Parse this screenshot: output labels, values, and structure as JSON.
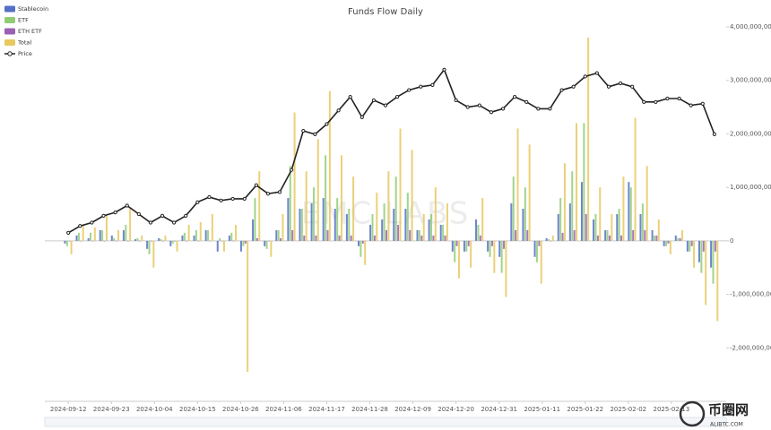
{
  "chart_data": {
    "type": "bar-line",
    "title": "Funds Flow Daily",
    "watermark": "EMC LABS",
    "x": [
      "2024-09-12",
      "2024-09-15",
      "2024-09-18",
      "2024-09-21",
      "2024-09-24",
      "2024-09-27",
      "2024-09-30",
      "2024-10-03",
      "2024-10-06",
      "2024-10-09",
      "2024-10-12",
      "2024-10-15",
      "2024-10-18",
      "2024-10-21",
      "2024-10-24",
      "2024-10-27",
      "2024-10-30",
      "2024-11-02",
      "2024-11-05",
      "2024-11-08",
      "2024-11-11",
      "2024-11-14",
      "2024-11-17",
      "2024-11-20",
      "2024-11-23",
      "2024-11-26",
      "2024-11-29",
      "2024-12-02",
      "2024-12-05",
      "2024-12-08",
      "2024-12-11",
      "2024-12-14",
      "2024-12-17",
      "2024-12-20",
      "2024-12-23",
      "2024-12-26",
      "2024-12-29",
      "2025-01-01",
      "2025-01-04",
      "2025-01-07",
      "2025-01-10",
      "2025-01-13",
      "2025-01-16",
      "2025-01-19",
      "2025-01-22",
      "2025-01-25",
      "2025-01-28",
      "2025-01-31",
      "2025-02-03",
      "2025-02-06",
      "2025-02-09",
      "2025-02-12",
      "2025-02-15",
      "2025-02-18",
      "2025-02-21",
      "2025-02-24"
    ],
    "xlim": [
      "2024-09-06",
      "2025-02-27"
    ],
    "xticks": [
      "2024-09-12",
      "2024-09-23",
      "2024-10-04",
      "2024-10-15",
      "2024-10-26",
      "2024-11-06",
      "2024-11-17",
      "2024-11-28",
      "2024-12-09",
      "2024-12-20",
      "2024-12-31",
      "2025-01-11",
      "2025-01-22",
      "2025-02-02",
      "2025-02-13"
    ],
    "ylim": [
      -3000000000,
      4000000000
    ],
    "yticks": [
      {
        "value": 4000000000,
        "label": "4,000,000,000"
      },
      {
        "value": 3000000000,
        "label": "3,000,000,000"
      },
      {
        "value": 2000000000,
        "label": "2,000,000,000"
      },
      {
        "value": 1000000000,
        "label": "1,000,000,000"
      },
      0,
      {
        "value": -1000000000,
        "label": "-1,000,000,000"
      },
      {
        "value": -2000000000,
        "label": "-2,000,000,000"
      }
    ],
    "y2lim": [
      8400,
      118600
    ],
    "grid": false,
    "legend": "top-left",
    "series": [
      {
        "name": "Stablecoin",
        "color": "#5470c6",
        "values": [
          -50000000.0,
          100000000.0,
          50000000.0,
          200000000.0,
          100000000.0,
          200000000.0,
          30000000.0,
          -150000000.0,
          50000000.0,
          -100000000.0,
          100000000.0,
          100000000.0,
          200000000.0,
          -200000000.0,
          100000000.0,
          -200000000.0,
          400000000.0,
          -100000000.0,
          200000000.0,
          800000000.0,
          600000000.0,
          700000000.0,
          800000000.0,
          600000000.0,
          500000000.0,
          -100000000.0,
          300000000.0,
          400000000.0,
          600000000.0,
          600000000.0,
          200000000.0,
          400000000.0,
          300000000.0,
          -200000000.0,
          -200000000.0,
          400000000.0,
          -200000000.0,
          -300000000.0,
          700000000.0,
          600000000.0,
          -300000000.0,
          50000000.0,
          500000000.0,
          700000000.0,
          1100000000.0,
          400000000.0,
          200000000.0,
          500000000.0,
          1100000000.0,
          500000000.0,
          200000000.0,
          -100000000.0,
          100000000.0,
          -200000000.0,
          -400000000.0,
          -500000000.0
        ]
      },
      {
        "name": "ETF",
        "color": "#91cc75",
        "values": [
          -100000000.0,
          150000000.0,
          150000000.0,
          200000000.0,
          50000000.0,
          300000000.0,
          50000000.0,
          -250000000.0,
          30000000.0,
          -50000000.0,
          150000000.0,
          200000000.0,
          200000000.0,
          50000000.0,
          150000000.0,
          -100000000.0,
          800000000.0,
          -150000000.0,
          200000000.0,
          1400000000.0,
          600000000.0,
          1000000000.0,
          1600000000.0,
          800000000.0,
          600000000.0,
          -300000000.0,
          500000000.0,
          700000000.0,
          1200000000.0,
          900000000.0,
          200000000.0,
          500000000.0,
          300000000.0,
          -400000000.0,
          -200000000.0,
          300000000.0,
          -300000000.0,
          -600000000.0,
          1200000000.0,
          1000000000.0,
          -400000000.0,
          30000000.0,
          800000000.0,
          1300000000.0,
          2200000000.0,
          500000000.0,
          200000000.0,
          600000000.0,
          1000000000.0,
          700000000.0,
          100000000.0,
          -100000000.0,
          50000000.0,
          -200000000.0,
          -600000000.0,
          -800000000.0
        ]
      },
      {
        "name": "ETH ETF",
        "color": "#9a60b4",
        "values": [
          0,
          0,
          0,
          0,
          0,
          0,
          0,
          -10000000.0,
          0,
          0,
          0,
          0,
          0,
          0,
          0,
          -50000000.0,
          50000000.0,
          0,
          50000000.0,
          200000000.0,
          100000000.0,
          100000000.0,
          200000000.0,
          100000000.0,
          100000000.0,
          -50000000.0,
          100000000.0,
          200000000.0,
          300000000.0,
          200000000.0,
          100000000.0,
          100000000.0,
          100000000.0,
          -100000000.0,
          -100000000.0,
          100000000.0,
          -100000000.0,
          -150000000.0,
          200000000.0,
          200000000.0,
          -100000000.0,
          0,
          150000000.0,
          200000000.0,
          500000000.0,
          100000000.0,
          100000000.0,
          100000000.0,
          200000000.0,
          200000000.0,
          100000000.0,
          -50000000.0,
          50000000.0,
          -100000000.0,
          -200000000.0,
          -200000000.0
        ]
      },
      {
        "name": "Total",
        "color": "#e8c860",
        "values": [
          -250000000.0,
          300000000.0,
          250000000.0,
          500000000.0,
          200000000.0,
          600000000.0,
          100000000.0,
          -500000000.0,
          100000000.0,
          -200000000.0,
          300000000.0,
          350000000.0,
          500000000.0,
          -200000000.0,
          300000000.0,
          -2450000000.0,
          1300000000.0,
          -300000000.0,
          500000000.0,
          2400000000.0,
          1300000000.0,
          1900000000.0,
          2800000000.0,
          1600000000.0,
          1200000000.0,
          -450000000.0,
          900000000.0,
          1300000000.0,
          2100000000.0,
          1700000000.0,
          500000000.0,
          1000000000.0,
          700000000.0,
          -700000000.0,
          -500000000.0,
          800000000.0,
          -600000000.0,
          -1050000000.0,
          2100000000.0,
          1800000000.0,
          -800000000.0,
          100000000.0,
          1450000000.0,
          2200000000.0,
          3800000000.0,
          1000000000.0,
          500000000.0,
          1200000000.0,
          2300000000.0,
          1400000000.0,
          400000000.0,
          -250000000.0,
          200000000.0,
          -500000000.0,
          -1200000000.0,
          -1500000000.0
        ]
      },
      {
        "name": "Price",
        "color": "#222222",
        "axis": "y2",
        "type": "line",
        "values": [
          58000,
          60000,
          61000,
          63000,
          64000,
          66000,
          63500,
          61000,
          63000,
          61000,
          63000,
          67000,
          68500,
          67500,
          68000,
          68000,
          72000,
          69500,
          70000,
          76500,
          88000,
          87000,
          90000,
          94000,
          98000,
          92000,
          97000,
          95500,
          98000,
          100000,
          101000,
          101500,
          106000,
          97000,
          95000,
          95500,
          93500,
          94500,
          98000,
          96500,
          94500,
          94500,
          100000,
          101000,
          104000,
          105000,
          101000,
          102000,
          101000,
          96500,
          96500,
          97500,
          97500,
          95500,
          96000,
          87000
        ]
      }
    ]
  },
  "overlay": {
    "logo": "币圈网",
    "url": "ALIBTC.COM"
  }
}
